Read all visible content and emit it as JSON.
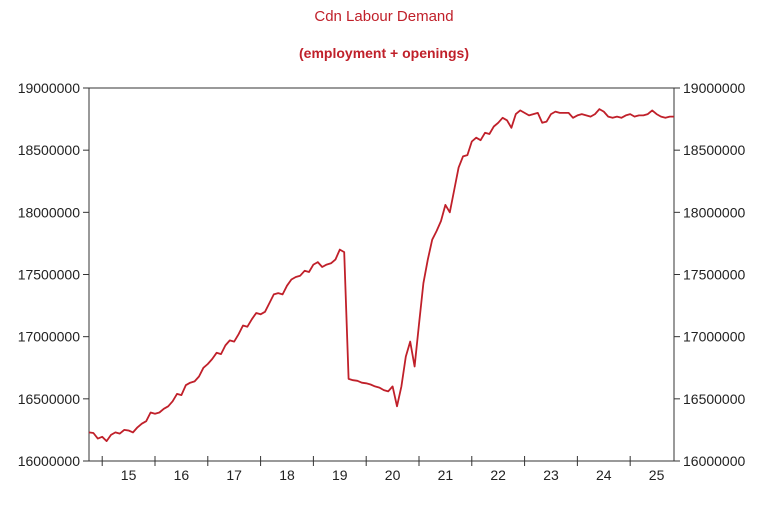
{
  "chart_data": {
    "type": "line",
    "title": "Cdn Labour Demand",
    "subtitle": "(employment + openings)",
    "xlabel": "",
    "ylabel": "",
    "ylim": [
      16000000,
      19000000
    ],
    "yticks": [
      16000000,
      16500000,
      17000000,
      17500000,
      18000000,
      18500000,
      19000000
    ],
    "ytick_labels": [
      "16000000",
      "16500000",
      "17000000",
      "17500000",
      "18000000",
      "18500000",
      "19000000"
    ],
    "xlim": [
      2014.75,
      2025.83
    ],
    "xticks": [
      2015,
      2016,
      2017,
      2018,
      2019,
      2020,
      2021,
      2022,
      2023,
      2024,
      2025
    ],
    "xtick_labels": [
      "15",
      "16",
      "17",
      "18",
      "19",
      "20",
      "21",
      "22",
      "23",
      "24",
      "25"
    ],
    "grid": false,
    "axes": "both-sides",
    "series": [
      {
        "name": "",
        "color": "#c0202a",
        "x": [
          2014.75,
          2014.833,
          2014.917,
          2015.0,
          2015.083,
          2015.167,
          2015.25,
          2015.333,
          2015.417,
          2015.5,
          2015.583,
          2015.667,
          2015.75,
          2015.833,
          2015.917,
          2016.0,
          2016.083,
          2016.167,
          2016.25,
          2016.333,
          2016.417,
          2016.5,
          2016.583,
          2016.667,
          2016.75,
          2016.833,
          2016.917,
          2017.0,
          2017.083,
          2017.167,
          2017.25,
          2017.333,
          2017.417,
          2017.5,
          2017.583,
          2017.667,
          2017.75,
          2017.833,
          2017.917,
          2018.0,
          2018.083,
          2018.167,
          2018.25,
          2018.333,
          2018.417,
          2018.5,
          2018.583,
          2018.667,
          2018.75,
          2018.833,
          2018.917,
          2019.0,
          2019.083,
          2019.167,
          2019.25,
          2019.333,
          2019.417,
          2019.5,
          2019.583,
          2019.667,
          2019.75,
          2019.833,
          2019.917,
          2020.0,
          2020.083,
          2020.167,
          2020.25,
          2020.333,
          2020.417,
          2020.5,
          2020.583,
          2020.667,
          2020.75,
          2020.833,
          2020.917,
          2021.0,
          2021.083,
          2021.167,
          2021.25,
          2021.333,
          2021.417,
          2021.5,
          2021.583,
          2021.667,
          2021.75,
          2021.833,
          2021.917,
          2022.0,
          2022.083,
          2022.167,
          2022.25,
          2022.333,
          2022.417,
          2022.5,
          2022.583,
          2022.667,
          2022.75,
          2022.833,
          2022.917,
          2023.0,
          2023.083,
          2023.167,
          2023.25,
          2023.333,
          2023.417,
          2023.5,
          2023.583,
          2023.667,
          2023.75,
          2023.833,
          2023.917,
          2024.0,
          2024.083,
          2024.167,
          2024.25,
          2024.333,
          2024.417,
          2024.5,
          2024.583,
          2024.667,
          2024.75,
          2024.833,
          2024.917,
          2025.0,
          2025.083,
          2025.167,
          2025.25,
          2025.333,
          2025.417,
          2025.5,
          2025.583,
          2025.667,
          2025.75,
          2025.83
        ],
        "y": [
          16230000,
          16225000,
          16180000,
          16195000,
          16160000,
          16210000,
          16230000,
          16220000,
          16250000,
          16245000,
          16230000,
          16270000,
          16300000,
          16320000,
          16390000,
          16380000,
          16390000,
          16420000,
          16440000,
          16480000,
          16540000,
          16530000,
          16610000,
          16630000,
          16640000,
          16680000,
          16750000,
          16780000,
          16820000,
          16870000,
          16860000,
          16930000,
          16970000,
          16960000,
          17020000,
          17090000,
          17080000,
          17140000,
          17190000,
          17180000,
          17200000,
          17270000,
          17340000,
          17350000,
          17340000,
          17410000,
          17460000,
          17480000,
          17490000,
          17530000,
          17520000,
          17580000,
          17600000,
          17560000,
          17580000,
          17590000,
          17620000,
          17700000,
          17680000,
          16660000,
          16650000,
          16645000,
          16630000,
          16625000,
          16615000,
          16600000,
          16590000,
          16570000,
          16560000,
          16600000,
          16440000,
          16600000,
          16840000,
          16960000,
          16760000,
          17100000,
          17430000,
          17620000,
          17780000,
          17850000,
          17930000,
          18060000,
          18000000,
          18180000,
          18360000,
          18450000,
          18460000,
          18570000,
          18600000,
          18580000,
          18640000,
          18630000,
          18690000,
          18720000,
          18760000,
          18740000,
          18680000,
          18790000,
          18820000,
          18800000,
          18780000,
          18790000,
          18800000,
          18720000,
          18730000,
          18790000,
          18810000,
          18800000,
          18800000,
          18800000,
          18760000,
          18780000,
          18790000,
          18780000,
          18770000,
          18790000,
          18830000,
          18810000,
          18770000,
          18760000,
          18770000,
          18760000,
          18780000,
          18790000,
          18770000,
          18780000,
          18780000,
          18790000,
          18820000,
          18790000,
          18770000,
          18760000,
          18770000,
          18770000
        ]
      }
    ]
  }
}
